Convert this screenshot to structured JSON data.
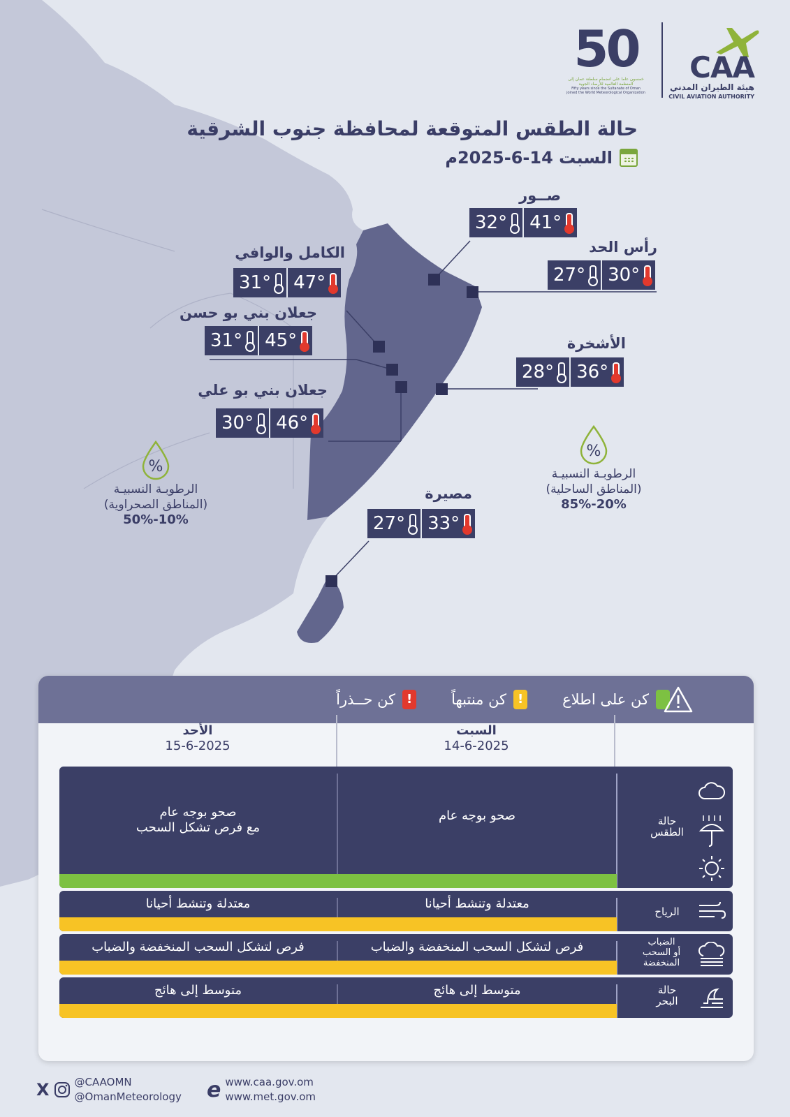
{
  "header": {
    "logo_50_text": "50",
    "logo_50_caption_ar": "خمسون عاما على انضمام سلطنة عمان إلى المنظمة العالمية للأرصاد الجوية",
    "logo_50_caption_en": "Fifty years since the Sultanate of Oman joined the World Meteorological Organization",
    "caa_logo_text": "CAA",
    "caa_name_ar": "هيئة الطيران المدني",
    "caa_name_en": "CIVIL AVIATION AUTHORITY"
  },
  "title": "حالة الطقس المتوقعة لمحافظة جنوب الشرقية",
  "date_line": "السبت 14-6-2025م",
  "cities": [
    {
      "name": "صــور",
      "max": "41°",
      "min": "32°"
    },
    {
      "name": "رأس الحد",
      "max": "30°",
      "min": "27°"
    },
    {
      "name": "الكامل والوافي",
      "max": "47°",
      "min": "31°"
    },
    {
      "name": "جعلان بني بو حسن",
      "max": "45°",
      "min": "31°"
    },
    {
      "name": "الأشخرة",
      "max": "36°",
      "min": "28°"
    },
    {
      "name": "جعلان بني بو علي",
      "max": "46°",
      "min": "30°"
    },
    {
      "name": "مصيرة",
      "max": "33°",
      "min": "27°"
    }
  ],
  "humidity": {
    "desert": {
      "label1": "الرطوبـة النسبيـة",
      "label2": "(المناطق الصحراوية)",
      "value": "10%-50%"
    },
    "coastal": {
      "label1": "الرطوبـة النسبيـة",
      "label2": "(المناطق الساحلية)",
      "value": "20%-85%"
    }
  },
  "legend": {
    "info": {
      "label": "كن على اطلاع",
      "color": "#7dc142"
    },
    "caution": {
      "label": "كن منتبهاً",
      "color": "#f7c325"
    },
    "warning": {
      "label": "كن حــذراً",
      "color": "#e2392d"
    }
  },
  "days": [
    {
      "name": "السبت",
      "date": "14-6-2025"
    },
    {
      "name": "الأحد",
      "date": "15-6-2025"
    }
  ],
  "rows": [
    {
      "label": "حالة الطقس",
      "sat": "صحو بوجه عام",
      "sun_line1": "صحو بوجه عام",
      "sun_line2": "مع فرص تشكل السحب",
      "level": "info"
    },
    {
      "label": "الرياح",
      "sat": "معتدلة وتنشط أحيانا",
      "sun": "معتدلة وتنشط أحيانا",
      "level": "caution"
    },
    {
      "label_line1": "الضباب",
      "label_line2": "أو السحب",
      "label_line3": "المنخفضة",
      "sat": "فرص لتشكل السحب المنخفضة والضباب",
      "sun": "فرص لتشكل السحب المنخفضة والضباب",
      "level": "caution"
    },
    {
      "label_line1": "حالة",
      "label_line2": "البحر",
      "sat": "متوسط إلى هائج",
      "sun": "متوسط إلى هائج",
      "level": "caution"
    }
  ],
  "footer": {
    "handle1": "@CAAOMN",
    "handle2": "@OmanMeteorology",
    "site1": "www.caa.gov.om",
    "site2": "www.met.gov.om"
  }
}
